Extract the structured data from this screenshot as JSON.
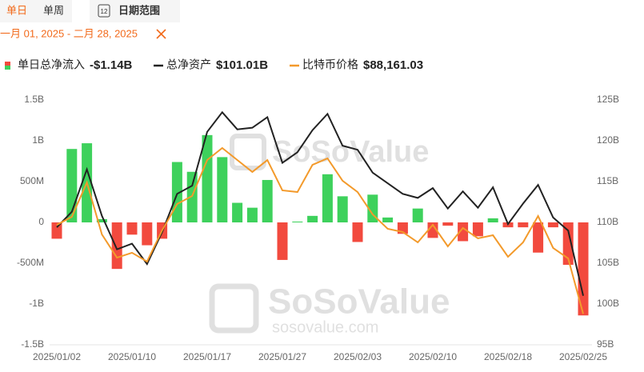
{
  "header": {
    "tabs": [
      "单日",
      "单周"
    ],
    "calendar_icon": "12",
    "range_button": "日期范围",
    "date_range": "一月 01, 2025 - 二月 28, 2025"
  },
  "watermark": {
    "brand": "SoSoValue",
    "site": "sosovalue.com"
  },
  "chart_data": {
    "type": "bar",
    "categories": [
      "2025/01/02",
      null,
      null,
      null,
      null,
      "2025/01/10",
      null,
      null,
      null,
      null,
      "2025/01/17",
      null,
      null,
      null,
      null,
      "2025/01/27",
      null,
      null,
      null,
      null,
      "2025/02/03",
      null,
      null,
      null,
      null,
      "2025/02/10",
      null,
      null,
      null,
      null,
      "2025/02/18",
      null,
      null,
      null,
      null,
      "2025/02/25"
    ],
    "series": [
      {
        "name": "单日总净流入",
        "type": "bar",
        "legend_value": "-$1.14B",
        "color": "#3ed15c",
        "negative_color": "#f24a3e",
        "values": [
          -0.2,
          0.9,
          0.97,
          0.04,
          -0.57,
          -0.15,
          -0.28,
          -0.2,
          0.74,
          0.62,
          1.07,
          0.8,
          0.24,
          0.18,
          0.52,
          -0.46,
          0.01,
          0.08,
          0.59,
          0.32,
          -0.24,
          0.34,
          0.06,
          -0.14,
          0.17,
          -0.19,
          -0.04,
          -0.23,
          -0.17,
          0.05,
          -0.06,
          -0.06,
          -0.37,
          -0.06,
          -0.52,
          -1.14
        ]
      },
      {
        "name": "总净资产",
        "type": "line",
        "axis": "y2",
        "legend_value": "$101.01B",
        "color": "#222222",
        "values": [
          109.4,
          111.3,
          116.5,
          110.8,
          106.7,
          107.4,
          104.9,
          108.8,
          113.5,
          114.5,
          121.1,
          123.5,
          121.4,
          121.6,
          122.9,
          117.3,
          118.6,
          121.3,
          123.3,
          119.4,
          118.9,
          116.1,
          114.8,
          113.5,
          113.0,
          114.2,
          111.7,
          113.8,
          111.8,
          114.3,
          109.8,
          112.3,
          114.6,
          110.6,
          109.0,
          101.01
        ]
      },
      {
        "name": "比特币价格",
        "type": "line",
        "axis": "y3",
        "legend_value": "$88,161.03",
        "color": "#f39a2b",
        "values": [
          97250,
          98070,
          101580,
          96270,
          93900,
          94400,
          93500,
          96680,
          99380,
          100200,
          103870,
          105100,
          103870,
          102650,
          103870,
          100770,
          100600,
          103380,
          104040,
          101750,
          100600,
          98320,
          96850,
          96520,
          95460,
          97250,
          95050,
          96930,
          95870,
          96190,
          93990,
          95460,
          98150,
          94890,
          93820,
          88161.03
        ]
      }
    ],
    "ylim": [
      -1.5,
      1.5
    ],
    "yticks": [
      {
        "value": 1.5,
        "label": "1.5B"
      },
      {
        "value": 1,
        "label": "1B"
      },
      {
        "value": 0.5,
        "label": "500M"
      },
      0,
      {
        "value": -0.5,
        "label": "-500M"
      },
      {
        "value": -1,
        "label": "-1B"
      },
      {
        "value": -1.5,
        "label": "-1.5B"
      }
    ],
    "y2lim": [
      95,
      125
    ],
    "y2ticks": [
      {
        "value": 125,
        "label": "125B"
      },
      {
        "value": 120,
        "label": "120B"
      },
      {
        "value": 115,
        "label": "115B"
      },
      {
        "value": 110,
        "label": "110B"
      },
      {
        "value": 105,
        "label": "105B"
      },
      {
        "value": 100,
        "label": "100B"
      },
      {
        "value": 95,
        "label": "95B"
      }
    ],
    "y3lim": [
      85000,
      110000
    ],
    "grid": false
  }
}
